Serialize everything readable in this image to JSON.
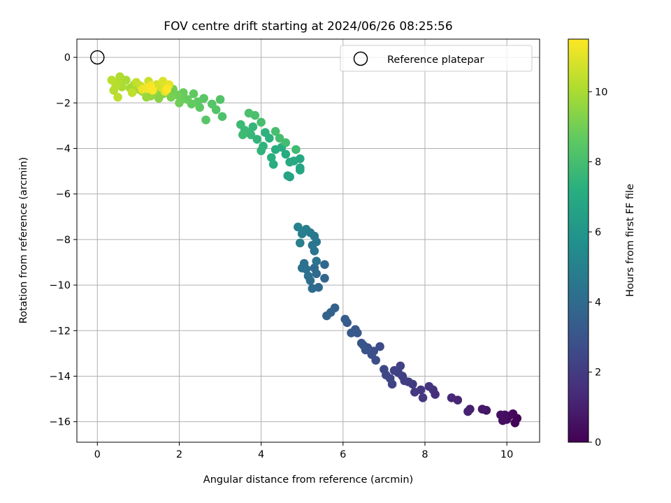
{
  "chart_data": {
    "type": "scatter",
    "title": "FOV centre drift starting at 2024/06/26 08:25:56",
    "xlabel": "Angular distance from reference (arcmin)",
    "ylabel": "Rotation from reference (arcmin)",
    "xlim": [
      -0.5,
      10.8
    ],
    "ylim": [
      -16.9,
      0.8
    ],
    "xticks": [
      0,
      2,
      4,
      6,
      8,
      10
    ],
    "yticks": [
      0,
      -2,
      -4,
      -6,
      -8,
      -10,
      -12,
      -14,
      -16
    ],
    "grid": true,
    "legend": {
      "placement": "upper right",
      "entries": [
        {
          "label": "Reference platepar",
          "marker": "open-circle",
          "x": 0,
          "y": 0
        }
      ]
    },
    "colorbar": {
      "label": "Hours from first FF file",
      "colormap": "viridis",
      "range": [
        0,
        11.5
      ],
      "ticks": [
        0,
        2,
        4,
        6,
        8,
        10
      ]
    },
    "series": [
      {
        "points": [
          [
            10.25,
            -15.85,
            0.0
          ],
          [
            10.2,
            -16.05,
            0.1
          ],
          [
            10.15,
            -15.65,
            0.2
          ],
          [
            10.05,
            -15.75,
            0.3
          ],
          [
            10.0,
            -15.9,
            0.35
          ],
          [
            9.95,
            -15.7,
            0.4
          ],
          [
            9.9,
            -15.95,
            0.45
          ],
          [
            9.85,
            -15.7,
            0.5
          ],
          [
            9.5,
            -15.5,
            0.7
          ],
          [
            9.4,
            -15.45,
            0.8
          ],
          [
            9.1,
            -15.45,
            1.0
          ],
          [
            9.05,
            -15.55,
            1.1
          ],
          [
            8.8,
            -15.05,
            1.2
          ],
          [
            8.65,
            -14.95,
            1.3
          ],
          [
            8.25,
            -14.8,
            1.5
          ],
          [
            8.2,
            -14.6,
            1.6
          ],
          [
            8.1,
            -14.45,
            1.7
          ],
          [
            7.95,
            -14.95,
            1.8
          ],
          [
            7.9,
            -14.6,
            1.85
          ],
          [
            7.75,
            -14.7,
            1.9
          ],
          [
            7.7,
            -14.35,
            2.0
          ],
          [
            7.6,
            -14.25,
            2.05
          ],
          [
            7.5,
            -14.2,
            2.1
          ],
          [
            7.45,
            -14.0,
            2.15
          ],
          [
            7.4,
            -13.55,
            2.2
          ],
          [
            7.35,
            -13.85,
            2.25
          ],
          [
            7.25,
            -13.75,
            2.3
          ],
          [
            7.2,
            -14.35,
            2.35
          ],
          [
            7.15,
            -14.1,
            2.4
          ],
          [
            7.05,
            -13.95,
            2.45
          ],
          [
            7.0,
            -13.7,
            2.5
          ],
          [
            6.9,
            -12.7,
            2.6
          ],
          [
            6.8,
            -13.3,
            2.7
          ],
          [
            6.75,
            -12.9,
            2.75
          ],
          [
            6.7,
            -13.05,
            2.8
          ],
          [
            6.6,
            -12.75,
            2.85
          ],
          [
            6.55,
            -12.85,
            2.9
          ],
          [
            6.5,
            -12.65,
            3.0
          ],
          [
            6.45,
            -12.55,
            3.05
          ],
          [
            6.35,
            -12.1,
            3.1
          ],
          [
            6.3,
            -11.95,
            3.15
          ],
          [
            6.2,
            -12.1,
            3.2
          ],
          [
            6.1,
            -11.65,
            3.3
          ],
          [
            6.05,
            -11.5,
            3.35
          ],
          [
            5.8,
            -11.0,
            3.5
          ],
          [
            5.7,
            -11.2,
            3.6
          ],
          [
            5.6,
            -11.35,
            3.65
          ],
          [
            5.55,
            -9.7,
            3.8
          ],
          [
            5.55,
            -9.1,
            3.85
          ],
          [
            5.4,
            -10.1,
            3.9
          ],
          [
            5.35,
            -9.5,
            3.95
          ],
          [
            5.3,
            -9.25,
            4.0
          ],
          [
            5.25,
            -10.15,
            4.05
          ],
          [
            5.2,
            -9.8,
            4.1
          ],
          [
            5.15,
            -9.6,
            4.15
          ],
          [
            5.1,
            -9.3,
            4.2
          ],
          [
            5.05,
            -9.05,
            4.25
          ],
          [
            5.0,
            -9.25,
            4.3
          ],
          [
            5.35,
            -8.95,
            4.35
          ],
          [
            5.3,
            -8.5,
            4.4
          ],
          [
            5.25,
            -8.25,
            4.45
          ],
          [
            5.35,
            -8.1,
            4.5
          ],
          [
            5.3,
            -7.85,
            4.6
          ],
          [
            5.2,
            -7.7,
            4.7
          ],
          [
            5.1,
            -7.55,
            4.8
          ],
          [
            5.0,
            -7.75,
            4.85
          ],
          [
            4.95,
            -8.15,
            4.9
          ],
          [
            4.9,
            -7.45,
            5.0
          ],
          [
            4.7,
            -5.25,
            6.6
          ],
          [
            4.65,
            -5.2,
            6.7
          ],
          [
            4.95,
            -4.95,
            6.8
          ],
          [
            4.95,
            -4.85,
            6.85
          ],
          [
            4.95,
            -4.45,
            6.9
          ],
          [
            4.8,
            -4.55,
            6.95
          ],
          [
            4.7,
            -4.6,
            7.0
          ],
          [
            4.6,
            -4.25,
            7.05
          ],
          [
            4.5,
            -3.95,
            7.1
          ],
          [
            4.35,
            -4.05,
            7.15
          ],
          [
            4.3,
            -4.7,
            7.2
          ],
          [
            4.25,
            -4.4,
            7.25
          ],
          [
            4.2,
            -3.55,
            7.3
          ],
          [
            4.1,
            -3.3,
            7.35
          ],
          [
            4.05,
            -3.9,
            7.4
          ],
          [
            4.0,
            -4.1,
            7.45
          ],
          [
            3.9,
            -3.6,
            7.5
          ],
          [
            3.8,
            -3.05,
            7.55
          ],
          [
            3.75,
            -3.4,
            7.6
          ],
          [
            3.7,
            -3.3,
            7.65
          ],
          [
            3.6,
            -3.2,
            7.7
          ],
          [
            3.5,
            -2.95,
            7.75
          ],
          [
            3.55,
            -3.4,
            7.8
          ],
          [
            4.85,
            -4.05,
            7.85
          ],
          [
            4.6,
            -3.75,
            7.9
          ],
          [
            4.45,
            -3.55,
            7.95
          ],
          [
            4.35,
            -3.25,
            8.0
          ],
          [
            4.0,
            -2.85,
            8.05
          ],
          [
            3.85,
            -2.55,
            8.1
          ],
          [
            3.7,
            -2.45,
            8.15
          ],
          [
            3.05,
            -2.6,
            8.2
          ],
          [
            3.0,
            -1.85,
            8.3
          ],
          [
            2.9,
            -2.3,
            8.35
          ],
          [
            2.8,
            -2.05,
            8.4
          ],
          [
            2.65,
            -2.75,
            8.45
          ],
          [
            2.6,
            -1.8,
            8.5
          ],
          [
            2.5,
            -2.2,
            8.55
          ],
          [
            2.45,
            -1.95,
            8.6
          ],
          [
            2.35,
            -1.6,
            8.65
          ],
          [
            2.3,
            -2.05,
            8.7
          ],
          [
            2.2,
            -1.85,
            8.75
          ],
          [
            2.1,
            -1.55,
            8.8
          ],
          [
            2.05,
            -1.85,
            8.85
          ],
          [
            2.0,
            -2.0,
            8.9
          ],
          [
            1.95,
            -1.65,
            8.95
          ],
          [
            1.85,
            -1.4,
            9.0
          ],
          [
            1.8,
            -1.75,
            9.1
          ],
          [
            1.7,
            -1.55,
            9.2
          ],
          [
            1.6,
            -1.6,
            9.3
          ],
          [
            1.5,
            -1.8,
            9.4
          ],
          [
            1.4,
            -1.55,
            9.5
          ],
          [
            1.3,
            -1.7,
            9.6
          ],
          [
            1.2,
            -1.75,
            9.7
          ],
          [
            1.1,
            -1.5,
            9.8
          ],
          [
            1.0,
            -1.4,
            9.85
          ],
          [
            0.9,
            -1.2,
            9.9
          ],
          [
            0.8,
            -1.35,
            9.95
          ],
          [
            0.7,
            -1.0,
            10.0
          ],
          [
            0.6,
            -1.3,
            10.05
          ],
          [
            0.55,
            -0.85,
            10.1
          ],
          [
            0.5,
            -1.1,
            10.15
          ],
          [
            0.45,
            -1.25,
            10.2
          ],
          [
            0.4,
            -1.45,
            10.25
          ],
          [
            0.35,
            -1.0,
            10.3
          ],
          [
            0.5,
            -1.75,
            10.35
          ],
          [
            0.85,
            -1.55,
            10.4
          ],
          [
            0.95,
            -1.1,
            10.45
          ],
          [
            1.05,
            -1.25,
            10.5
          ],
          [
            1.25,
            -1.05,
            10.6
          ],
          [
            1.45,
            -1.2,
            10.7
          ],
          [
            1.55,
            -1.3,
            10.8
          ],
          [
            1.6,
            -1.05,
            10.9
          ],
          [
            1.65,
            -1.5,
            11.0
          ],
          [
            1.75,
            -1.2,
            11.1
          ],
          [
            1.1,
            -1.4,
            11.2
          ],
          [
            1.2,
            -1.35,
            11.3
          ],
          [
            1.3,
            -1.25,
            11.4
          ],
          [
            1.35,
            -1.45,
            11.45
          ],
          [
            1.7,
            -1.4,
            11.5
          ]
        ]
      }
    ]
  }
}
